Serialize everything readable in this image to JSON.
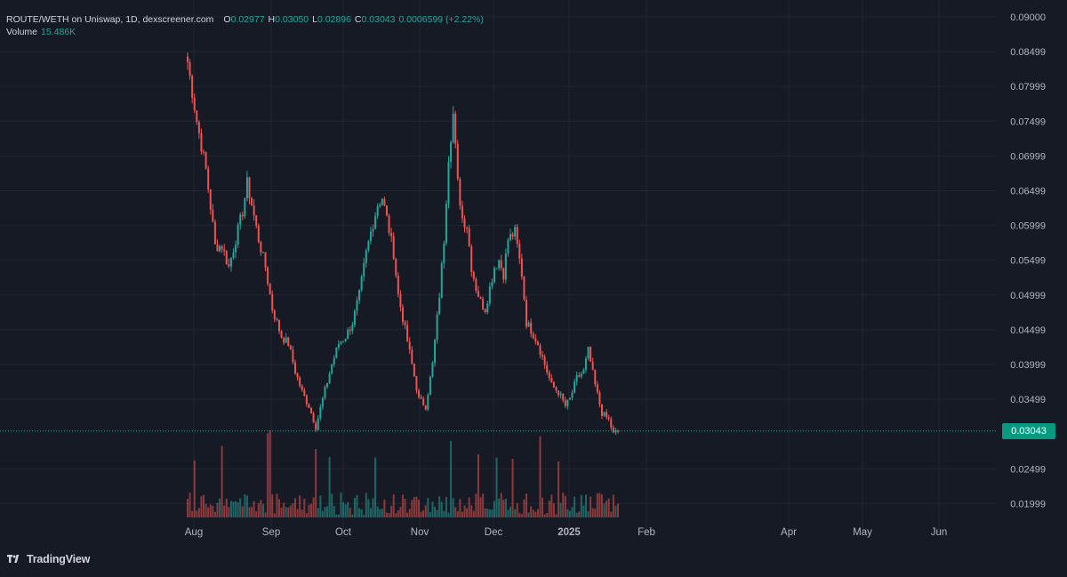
{
  "header": {
    "title": "ROUTE/WETH on Uniswap, 1D, dexscreener.com",
    "o_label": "O",
    "o_value": "0.02977",
    "h_label": "H",
    "h_value": "0.03050",
    "l_label": "L",
    "l_value": "0.02896",
    "c_label": "C",
    "c_value": "0.03043",
    "change": "0.0006599 (+2.22%)",
    "volume_label": "Volume",
    "volume_value": "15.486K"
  },
  "price_badge": "0.03043",
  "brand": {
    "name": "TradingView",
    "icon": "tradingview-logo-icon"
  },
  "colors": {
    "background": "#161a25",
    "up": "#26a69a",
    "down": "#ef5350",
    "grid": "#222631",
    "text": "#d1d4dc",
    "last_price_line": "#26a69a"
  },
  "chart_data": {
    "type": "candlestick",
    "y_ticks": [
      "0.09000",
      "0.08499",
      "0.07999",
      "0.07499",
      "0.06999",
      "0.06499",
      "0.05999",
      "0.05499",
      "0.04999",
      "0.04499",
      "0.03999",
      "0.03499",
      "0.02499",
      "0.01999"
    ],
    "ylim": [
      0.0185,
      0.0905
    ],
    "x_ticks": [
      "Aug",
      "Sep",
      "Oct",
      "Nov",
      "Dec",
      "2025",
      "Feb",
      "Apr",
      "May",
      "Jun"
    ],
    "last_price": 0.03043,
    "grid": true,
    "price_keypoints": [
      [
        0,
        0.0835
      ],
      [
        4,
        0.075
      ],
      [
        8,
        0.068
      ],
      [
        11,
        0.06
      ],
      [
        12,
        0.057
      ],
      [
        15,
        0.057
      ],
      [
        18,
        0.054
      ],
      [
        21,
        0.058
      ],
      [
        24,
        0.062
      ],
      [
        26,
        0.066
      ],
      [
        28,
        0.063
      ],
      [
        31,
        0.058
      ],
      [
        34,
        0.054
      ],
      [
        37,
        0.048
      ],
      [
        41,
        0.044
      ],
      [
        44,
        0.043
      ],
      [
        47,
        0.039
      ],
      [
        50,
        0.036
      ],
      [
        53,
        0.034
      ],
      [
        56,
        0.031
      ],
      [
        59,
        0.035
      ],
      [
        63,
        0.04
      ],
      [
        66,
        0.043
      ],
      [
        69,
        0.044
      ],
      [
        72,
        0.046
      ],
      [
        75,
        0.05
      ],
      [
        78,
        0.056
      ],
      [
        80,
        0.059
      ],
      [
        83,
        0.063
      ],
      [
        85,
        0.064
      ],
      [
        87,
        0.061
      ],
      [
        90,
        0.056
      ],
      [
        92,
        0.05
      ],
      [
        95,
        0.045
      ],
      [
        98,
        0.04
      ],
      [
        101,
        0.035
      ],
      [
        104,
        0.034
      ],
      [
        107,
        0.04
      ],
      [
        110,
        0.05
      ],
      [
        112,
        0.058
      ],
      [
        114,
        0.07
      ],
      [
        116,
        0.076
      ],
      [
        118,
        0.066
      ],
      [
        120,
        0.061
      ],
      [
        122,
        0.06
      ],
      [
        124,
        0.054
      ],
      [
        126,
        0.051
      ],
      [
        128,
        0.049
      ],
      [
        130,
        0.048
      ],
      [
        132,
        0.051
      ],
      [
        134,
        0.054
      ],
      [
        136,
        0.055
      ],
      [
        138,
        0.053
      ],
      [
        140,
        0.058
      ],
      [
        143,
        0.059
      ],
      [
        146,
        0.053
      ],
      [
        148,
        0.046
      ],
      [
        150,
        0.045
      ],
      [
        153,
        0.043
      ],
      [
        156,
        0.04
      ],
      [
        159,
        0.037
      ],
      [
        162,
        0.036
      ],
      [
        165,
        0.034
      ],
      [
        167,
        0.035
      ],
      [
        170,
        0.038
      ],
      [
        173,
        0.039
      ],
      [
        175,
        0.042
      ],
      [
        178,
        0.037
      ],
      [
        181,
        0.033
      ],
      [
        184,
        0.032
      ],
      [
        186,
        0.03
      ],
      [
        188,
        0.0304
      ]
    ]
  }
}
